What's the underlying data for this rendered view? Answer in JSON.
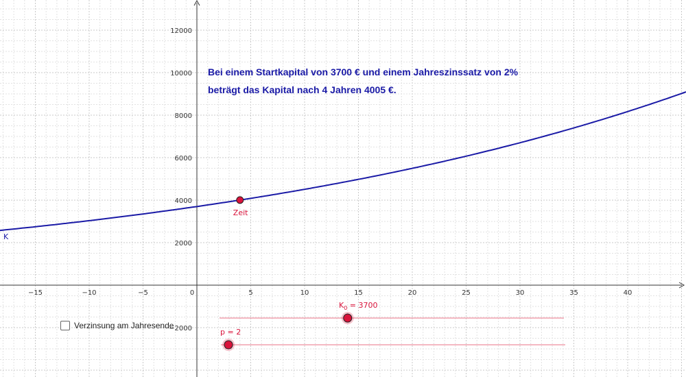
{
  "graph": {
    "x_ticks": [
      "−15",
      "−10",
      "−5",
      "0",
      "5",
      "10",
      "15",
      "20",
      "25",
      "30",
      "35",
      "40"
    ],
    "y_ticks": [
      "−2000",
      "2000",
      "4000",
      "6000",
      "8000",
      "10000",
      "12000"
    ],
    "function_label": "K",
    "function": {
      "start_capital": 3700,
      "rate_percent": 2,
      "color": "#1a1aa6"
    },
    "point": {
      "label": "Zeit",
      "x": 4,
      "color": "#d9133b"
    }
  },
  "info": {
    "line1": "Bei einem Startkapital von 3700 € und einem Jahreszinssatz von 2%",
    "line2": "beträgt das Kapital nach 4 Jahren  4005 €."
  },
  "sliders": {
    "k0": {
      "label_base": "K",
      "label_sub": "0",
      "label_rest": " = 3700",
      "value": 3700,
      "fraction": 0.372
    },
    "p": {
      "label": "p = 2",
      "value": 2,
      "fraction": 0.022
    }
  },
  "checkbox": {
    "label": "Verzinsung am Jahresende",
    "checked": false
  },
  "colors": {
    "accent": "#d9133b",
    "curve": "#1a1aa6",
    "slider_track": "#f0a0ae"
  }
}
